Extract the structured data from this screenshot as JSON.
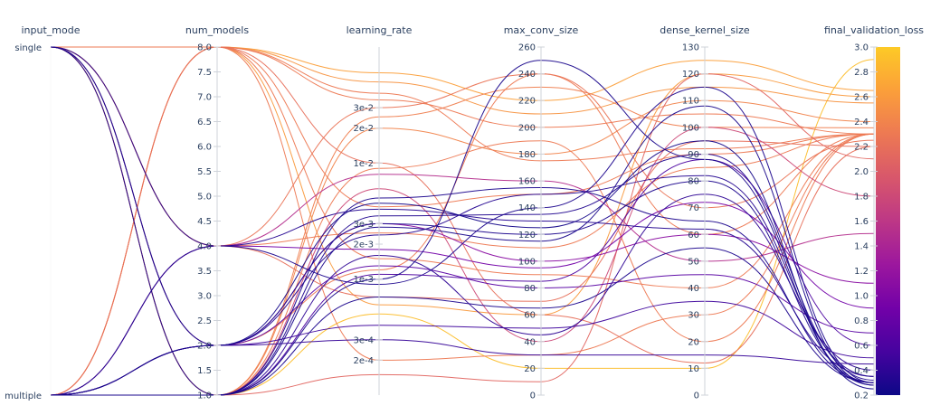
{
  "chart_data": {
    "type": "parallel_coordinates",
    "axes": [
      {
        "key": "input_mode",
        "label": "input_mode",
        "kind": "categorical",
        "categories": [
          "single",
          "multiple"
        ]
      },
      {
        "key": "num_models",
        "label": "num_models",
        "kind": "linear",
        "range": [
          1.0,
          8.0
        ],
        "ticks": [
          {
            "v": 1.0,
            "t": "1.0"
          },
          {
            "v": 1.5,
            "t": "1.5"
          },
          {
            "v": 2.0,
            "t": "2.0"
          },
          {
            "v": 2.5,
            "t": "2.5"
          },
          {
            "v": 3.0,
            "t": "3.0"
          },
          {
            "v": 3.5,
            "t": "3.5"
          },
          {
            "v": 4.0,
            "t": "4.0"
          },
          {
            "v": 4.5,
            "t": "4.5"
          },
          {
            "v": 5.0,
            "t": "5.0"
          },
          {
            "v": 5.5,
            "t": "5.5"
          },
          {
            "v": 6.0,
            "t": "6.0"
          },
          {
            "v": 6.5,
            "t": "6.5"
          },
          {
            "v": 7.0,
            "t": "7.0"
          },
          {
            "v": 7.5,
            "t": "7.5"
          },
          {
            "v": 8.0,
            "t": "8.0"
          }
        ]
      },
      {
        "key": "learning_rate",
        "label": "learning_rate",
        "kind": "log",
        "range": [
          0.0001,
          0.1
        ],
        "ticks": [
          {
            "v": 0.0002,
            "t": "2e-4"
          },
          {
            "v": 0.0003,
            "t": "3e-4"
          },
          {
            "v": 0.001,
            "t": "1e-3"
          },
          {
            "v": 0.002,
            "t": "2e-3"
          },
          {
            "v": 0.003,
            "t": "3e-3"
          },
          {
            "v": 0.01,
            "t": "1e-2"
          },
          {
            "v": 0.02,
            "t": "2e-2"
          },
          {
            "v": 0.03,
            "t": "3e-2"
          }
        ]
      },
      {
        "key": "max_conv_size",
        "label": "max_conv_size",
        "kind": "linear",
        "range": [
          0,
          260
        ],
        "ticks": [
          {
            "v": 0,
            "t": "0"
          },
          {
            "v": 20,
            "t": "20"
          },
          {
            "v": 40,
            "t": "40"
          },
          {
            "v": 60,
            "t": "60"
          },
          {
            "v": 80,
            "t": "80"
          },
          {
            "v": 100,
            "t": "100"
          },
          {
            "v": 120,
            "t": "120"
          },
          {
            "v": 140,
            "t": "140"
          },
          {
            "v": 160,
            "t": "160"
          },
          {
            "v": 180,
            "t": "180"
          },
          {
            "v": 200,
            "t": "200"
          },
          {
            "v": 220,
            "t": "220"
          },
          {
            "v": 240,
            "t": "240"
          },
          {
            "v": 260,
            "t": "260"
          }
        ]
      },
      {
        "key": "dense_kernel_size",
        "label": "dense_kernel_size",
        "kind": "linear",
        "range": [
          0,
          130
        ],
        "ticks": [
          {
            "v": 0,
            "t": "0"
          },
          {
            "v": 10,
            "t": "10"
          },
          {
            "v": 20,
            "t": "20"
          },
          {
            "v": 30,
            "t": "30"
          },
          {
            "v": 40,
            "t": "40"
          },
          {
            "v": 50,
            "t": "50"
          },
          {
            "v": 60,
            "t": "60"
          },
          {
            "v": 70,
            "t": "70"
          },
          {
            "v": 80,
            "t": "80"
          },
          {
            "v": 90,
            "t": "90"
          },
          {
            "v": 100,
            "t": "100"
          },
          {
            "v": 110,
            "t": "110"
          },
          {
            "v": 120,
            "t": "120"
          },
          {
            "v": 130,
            "t": "130"
          }
        ]
      },
      {
        "key": "final_validation_loss",
        "label": "final_validation_loss",
        "kind": "linear",
        "range": [
          0.2,
          3.0
        ],
        "ticks": [
          {
            "v": 0.2,
            "t": "0.2"
          },
          {
            "v": 0.4,
            "t": "0.4"
          },
          {
            "v": 0.6,
            "t": "0.6"
          },
          {
            "v": 0.8,
            "t": "0.8"
          },
          {
            "v": 1.0,
            "t": "1.0"
          },
          {
            "v": 1.2,
            "t": "1.2"
          },
          {
            "v": 1.4,
            "t": "1.4"
          },
          {
            "v": 1.6,
            "t": "1.6"
          },
          {
            "v": 1.8,
            "t": "1.8"
          },
          {
            "v": 2.0,
            "t": "2.0"
          },
          {
            "v": 2.2,
            "t": "2.2"
          },
          {
            "v": 2.4,
            "t": "2.4"
          },
          {
            "v": 2.6,
            "t": "2.6"
          },
          {
            "v": 2.8,
            "t": "2.8"
          },
          {
            "v": 3.0,
            "t": "3.0"
          }
        ]
      }
    ],
    "colorbar": {
      "range": [
        0.2,
        3.0
      ],
      "colorscale": [
        "#0d0887",
        "#46039f",
        "#7201a8",
        "#9c179e",
        "#bd3786",
        "#d8576b",
        "#ed7953",
        "#fb9f3a",
        "#fdca26"
      ]
    },
    "runs": [
      {
        "input_mode": "single",
        "num_models": 8,
        "learning_rate": 0.05,
        "max_conv_size": 210,
        "dense_kernel_size": 115,
        "final_validation_loss": 2.55
      },
      {
        "input_mode": "single",
        "num_models": 8,
        "learning_rate": 0.035,
        "max_conv_size": 200,
        "dense_kernel_size": 105,
        "final_validation_loss": 2.3
      },
      {
        "input_mode": "single",
        "num_models": 8,
        "learning_rate": 0.0042,
        "max_conv_size": 150,
        "dense_kernel_size": 90,
        "final_validation_loss": 2.3
      },
      {
        "input_mode": "single",
        "num_models": 8,
        "learning_rate": 0.0006,
        "max_conv_size": 60,
        "dense_kernel_size": 120,
        "final_validation_loss": 2.6
      },
      {
        "input_mode": "single",
        "num_models": 8,
        "learning_rate": 0.0015,
        "max_conv_size": 90,
        "dense_kernel_size": 40,
        "final_validation_loss": 2.3
      },
      {
        "input_mode": "single",
        "num_models": 4,
        "learning_rate": 0.03,
        "max_conv_size": 240,
        "dense_kernel_size": 70,
        "final_validation_loss": 2.25
      },
      {
        "input_mode": "single",
        "num_models": 4,
        "learning_rate": 0.0025,
        "max_conv_size": 110,
        "dense_kernel_size": 85,
        "final_validation_loss": 2.3
      },
      {
        "input_mode": "single",
        "num_models": 4,
        "learning_rate": 0.0007,
        "max_conv_size": 70,
        "dense_kernel_size": 95,
        "final_validation_loss": 2.2
      },
      {
        "input_mode": "single",
        "num_models": 4,
        "learning_rate": 0.004,
        "max_conv_size": 130,
        "dense_kernel_size": 62,
        "final_validation_loss": 0.35
      },
      {
        "input_mode": "single",
        "num_models": 2,
        "learning_rate": 0.003,
        "max_conv_size": 120,
        "dense_kernel_size": 80,
        "final_validation_loss": 0.3
      },
      {
        "input_mode": "single",
        "num_models": 2,
        "learning_rate": 0.0012,
        "max_conv_size": 240,
        "dense_kernel_size": 60,
        "final_validation_loss": 2.3
      },
      {
        "input_mode": "single",
        "num_models": 2,
        "learning_rate": 0.0003,
        "max_conv_size": 30,
        "dense_kernel_size": 15,
        "final_validation_loss": 0.45
      },
      {
        "input_mode": "single",
        "num_models": 1,
        "learning_rate": 0.001,
        "max_conv_size": 250,
        "dense_kernel_size": 88,
        "final_validation_loss": 0.28
      },
      {
        "input_mode": "single",
        "num_models": 1,
        "learning_rate": 0.02,
        "max_conv_size": 180,
        "dense_kernel_size": 110,
        "final_validation_loss": 2.4
      },
      {
        "input_mode": "single",
        "num_models": 1,
        "learning_rate": 0.0005,
        "max_conv_size": 20,
        "dense_kernel_size": 10,
        "final_validation_loss": 2.9
      },
      {
        "input_mode": "single",
        "num_models": 1,
        "learning_rate": 0.006,
        "max_conv_size": 40,
        "dense_kernel_size": 100,
        "final_validation_loss": 1.8
      },
      {
        "input_mode": "multiple",
        "num_models": 8,
        "learning_rate": 0.06,
        "max_conv_size": 220,
        "dense_kernel_size": 125,
        "final_validation_loss": 2.65
      },
      {
        "input_mode": "multiple",
        "num_models": 8,
        "learning_rate": 0.04,
        "max_conv_size": 175,
        "dense_kernel_size": 92,
        "final_validation_loss": 2.3
      },
      {
        "input_mode": "multiple",
        "num_models": 8,
        "learning_rate": 0.01,
        "max_conv_size": 60,
        "dense_kernel_size": 12,
        "final_validation_loss": 2.2
      },
      {
        "input_mode": "multiple",
        "num_models": 8,
        "learning_rate": 0.0002,
        "max_conv_size": 30,
        "dense_kernel_size": 30,
        "final_validation_loss": 2.3
      },
      {
        "input_mode": "multiple",
        "num_models": 4,
        "learning_rate": 0.008,
        "max_conv_size": 160,
        "dense_kernel_size": 50,
        "final_validation_loss": 1.5
      },
      {
        "input_mode": "multiple",
        "num_models": 4,
        "learning_rate": 0.0018,
        "max_conv_size": 95,
        "dense_kernel_size": 72,
        "final_validation_loss": 0.9
      },
      {
        "input_mode": "multiple",
        "num_models": 4,
        "learning_rate": 0.0009,
        "max_conv_size": 140,
        "dense_kernel_size": 115,
        "final_validation_loss": 0.3
      },
      {
        "input_mode": "multiple",
        "num_models": 2,
        "learning_rate": 0.003,
        "max_conv_size": 100,
        "dense_kernel_size": 60,
        "final_validation_loss": 1.1
      },
      {
        "input_mode": "multiple",
        "num_models": 2,
        "learning_rate": 0.0013,
        "max_conv_size": 80,
        "dense_kernel_size": 45,
        "final_validation_loss": 0.7
      },
      {
        "input_mode": "multiple",
        "num_models": 2,
        "learning_rate": 0.0045,
        "max_conv_size": 125,
        "dense_kernel_size": 95,
        "final_validation_loss": 0.25
      },
      {
        "input_mode": "multiple",
        "num_models": 2,
        "learning_rate": 0.0024,
        "max_conv_size": 150,
        "dense_kernel_size": 82,
        "final_validation_loss": 0.35
      },
      {
        "input_mode": "multiple",
        "num_models": 2,
        "learning_rate": 0.0004,
        "max_conv_size": 50,
        "dense_kernel_size": 35,
        "final_validation_loss": 0.5
      },
      {
        "input_mode": "multiple",
        "num_models": 1,
        "learning_rate": 0.0035,
        "max_conv_size": 135,
        "dense_kernel_size": 90,
        "final_validation_loss": 0.32
      },
      {
        "input_mode": "multiple",
        "num_models": 1,
        "learning_rate": 0.005,
        "max_conv_size": 155,
        "dense_kernel_size": 65,
        "final_validation_loss": 0.3
      },
      {
        "input_mode": "multiple",
        "num_models": 1,
        "learning_rate": 0.0011,
        "max_conv_size": 85,
        "dense_kernel_size": 88,
        "final_validation_loss": 0.6
      },
      {
        "input_mode": "multiple",
        "num_models": 1,
        "learning_rate": 0.0028,
        "max_conv_size": 115,
        "dense_kernel_size": 108,
        "final_validation_loss": 0.28
      },
      {
        "input_mode": "multiple",
        "num_models": 1,
        "learning_rate": 0.0016,
        "max_conv_size": 45,
        "dense_kernel_size": 75,
        "final_validation_loss": 0.4
      },
      {
        "input_mode": "multiple",
        "num_models": 1,
        "learning_rate": 0.0007,
        "max_conv_size": 65,
        "dense_kernel_size": 55,
        "final_validation_loss": 0.3
      },
      {
        "input_mode": "multiple",
        "num_models": 1,
        "learning_rate": 0.025,
        "max_conv_size": 230,
        "dense_kernel_size": 100,
        "final_validation_loss": 2.35
      },
      {
        "input_mode": "multiple",
        "num_models": 1,
        "learning_rate": 0.009,
        "max_conv_size": 190,
        "dense_kernel_size": 20,
        "final_validation_loss": 2.3
      },
      {
        "input_mode": "multiple",
        "num_models": 1,
        "learning_rate": 0.00015,
        "max_conv_size": 10,
        "dense_kernel_size": 120,
        "final_validation_loss": 2.1
      }
    ]
  }
}
